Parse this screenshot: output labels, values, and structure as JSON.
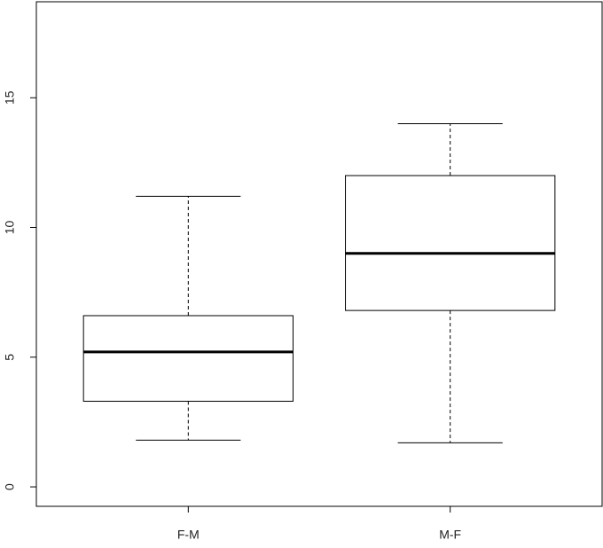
{
  "chart_data": {
    "type": "box",
    "categories": [
      "F-M",
      "M-F"
    ],
    "boxes": [
      {
        "min": 1.8,
        "q1": 3.3,
        "median": 5.2,
        "q3": 6.6,
        "max": 11.2
      },
      {
        "min": 1.7,
        "q1": 6.8,
        "median": 9.0,
        "q3": 12.0,
        "max": 14.0
      }
    ],
    "ylim": [
      -0.75,
      18.7
    ],
    "yticks": [
      0,
      5,
      10,
      15
    ]
  }
}
